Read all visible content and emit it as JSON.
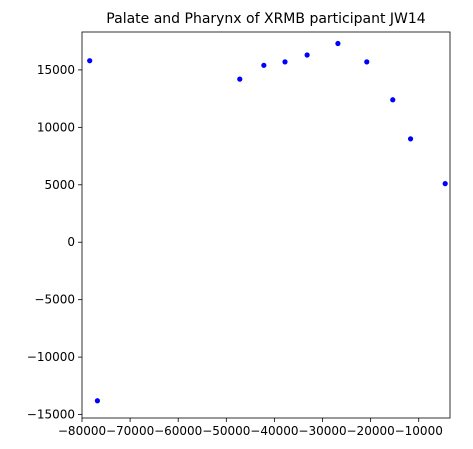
{
  "chart_data": {
    "type": "scatter",
    "title": "Palate and Pharynx of XRMB participant JW14",
    "xlabel": "",
    "ylabel": "",
    "xlim": [
      -80000,
      -3500
    ],
    "ylim": [
      -15300,
      18300
    ],
    "xticks": [
      -80000,
      -70000,
      -60000,
      -50000,
      -40000,
      -30000,
      -20000,
      -10000
    ],
    "xtick_labels": [
      "−80000",
      "−70000",
      "−60000",
      "−50000",
      "−40000",
      "−30000",
      "−20000",
      "−10000"
    ],
    "yticks": [
      -15000,
      -10000,
      -5000,
      0,
      5000,
      10000,
      15000
    ],
    "ytick_labels": [
      "−15000",
      "−10000",
      "−5000",
      "0",
      "5000",
      "10000",
      "15000"
    ],
    "grid": false,
    "series": [
      {
        "color": "#0000ff",
        "marker": "circle",
        "points": [
          {
            "x": -78400,
            "y": 15800
          },
          {
            "x": -76800,
            "y": -13800
          },
          {
            "x": -47200,
            "y": 14200
          },
          {
            "x": -42200,
            "y": 15400
          },
          {
            "x": -37800,
            "y": 15700
          },
          {
            "x": -33200,
            "y": 16300
          },
          {
            "x": -26800,
            "y": 17300
          },
          {
            "x": -20800,
            "y": 15700
          },
          {
            "x": -15400,
            "y": 12400
          },
          {
            "x": -11700,
            "y": 9000
          },
          {
            "x": -4500,
            "y": 5100
          }
        ]
      }
    ]
  }
}
